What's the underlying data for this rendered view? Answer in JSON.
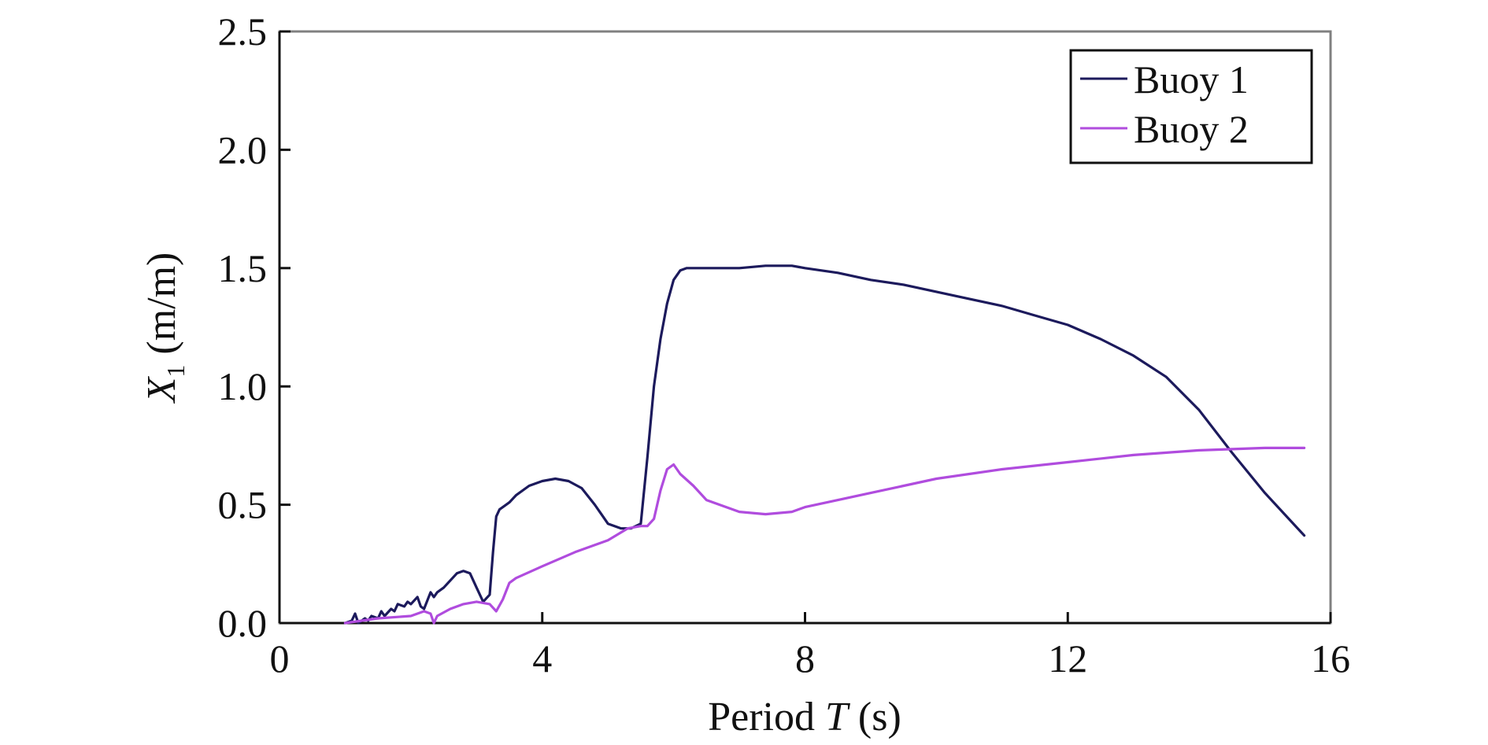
{
  "chart_data": {
    "type": "line",
    "xlabel": {
      "prefix": "Period ",
      "var": "T",
      "suffix": " (s)"
    },
    "ylabel": {
      "var": "X",
      "sub": "1",
      "suffix": " (m/m)"
    },
    "xlim": [
      0,
      16
    ],
    "ylim": [
      0,
      2.5
    ],
    "xticks": [
      0,
      4,
      8,
      12,
      16
    ],
    "xtick_labels": [
      "0",
      "4",
      "8",
      "12",
      "16"
    ],
    "yticks": [
      0.0,
      0.5,
      1.0,
      1.5,
      2.0,
      2.5
    ],
    "ytick_labels": [
      "0.0",
      "0.5",
      "1.0",
      "1.5",
      "2.0",
      "2.5"
    ],
    "grid": false,
    "legend_position": "top-right",
    "series": [
      {
        "name": "Buoy 1",
        "color": "#1c1a5c",
        "x": [
          1.0,
          1.1,
          1.15,
          1.2,
          1.3,
          1.35,
          1.4,
          1.5,
          1.55,
          1.6,
          1.7,
          1.75,
          1.8,
          1.9,
          1.95,
          2.0,
          2.1,
          2.15,
          2.2,
          2.3,
          2.35,
          2.4,
          2.5,
          2.6,
          2.7,
          2.8,
          2.9,
          3.0,
          3.1,
          3.2,
          3.25,
          3.3,
          3.35,
          3.4,
          3.45,
          3.5,
          3.6,
          3.8,
          4.0,
          4.2,
          4.4,
          4.6,
          4.8,
          5.0,
          5.2,
          5.35,
          5.5,
          5.6,
          5.7,
          5.8,
          5.9,
          6.0,
          6.1,
          6.2,
          6.3,
          6.4,
          6.6,
          7.0,
          7.4,
          7.8,
          8.0,
          8.5,
          9.0,
          9.5,
          10.0,
          10.5,
          11.0,
          11.5,
          12.0,
          12.5,
          13.0,
          13.5,
          14.0,
          14.5,
          15.0,
          15.6
        ],
        "y": [
          0.0,
          0.01,
          0.04,
          0.0,
          0.02,
          0.01,
          0.03,
          0.02,
          0.05,
          0.03,
          0.06,
          0.05,
          0.08,
          0.07,
          0.09,
          0.08,
          0.11,
          0.07,
          0.06,
          0.13,
          0.11,
          0.13,
          0.15,
          0.18,
          0.21,
          0.22,
          0.21,
          0.15,
          0.09,
          0.12,
          0.3,
          0.45,
          0.48,
          0.49,
          0.5,
          0.51,
          0.54,
          0.58,
          0.6,
          0.61,
          0.6,
          0.57,
          0.5,
          0.42,
          0.4,
          0.4,
          0.42,
          0.7,
          1.0,
          1.2,
          1.35,
          1.45,
          1.49,
          1.5,
          1.5,
          1.5,
          1.5,
          1.5,
          1.51,
          1.51,
          1.5,
          1.48,
          1.45,
          1.43,
          1.4,
          1.37,
          1.34,
          1.3,
          1.26,
          1.2,
          1.13,
          1.04,
          0.9,
          0.72,
          0.55,
          0.37
        ]
      },
      {
        "name": "Buoy 2",
        "color": "#b04cde",
        "x": [
          1.0,
          1.5,
          2.0,
          2.2,
          2.3,
          2.35,
          2.4,
          2.6,
          2.8,
          3.0,
          3.2,
          3.3,
          3.4,
          3.5,
          3.6,
          4.0,
          4.5,
          5.0,
          5.3,
          5.5,
          5.6,
          5.7,
          5.8,
          5.9,
          6.0,
          6.1,
          6.3,
          6.5,
          7.0,
          7.4,
          7.8,
          8.0,
          9.0,
          10.0,
          11.0,
          12.0,
          13.0,
          14.0,
          15.0,
          15.6
        ],
        "y": [
          0.0,
          0.02,
          0.03,
          0.05,
          0.04,
          0.0,
          0.03,
          0.06,
          0.08,
          0.09,
          0.08,
          0.05,
          0.1,
          0.17,
          0.19,
          0.24,
          0.3,
          0.35,
          0.4,
          0.41,
          0.41,
          0.44,
          0.56,
          0.65,
          0.67,
          0.63,
          0.58,
          0.52,
          0.47,
          0.46,
          0.47,
          0.49,
          0.55,
          0.61,
          0.65,
          0.68,
          0.71,
          0.73,
          0.74,
          0.74
        ]
      }
    ]
  }
}
